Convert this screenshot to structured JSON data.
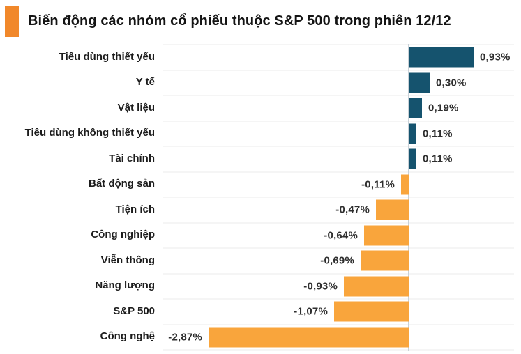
{
  "header": {
    "title": "Biến động các nhóm cổ phiếu thuộc S&P 500 trong phiên 12/12",
    "accent_color": "#f1882b"
  },
  "chart_data": {
    "type": "bar",
    "orientation": "horizontal",
    "title": "Biến động các nhóm cổ phiếu thuộc S&P 500 trong phiên 12/12",
    "categories": [
      "Tiêu dùng thiết yếu",
      "Y tế",
      "Vật liệu",
      "Tiêu dùng không thiết yếu",
      "Tài chính",
      "Bất động sản",
      "Tiện ích",
      "Công nghiệp",
      "Viễn thông",
      "Năng lượng",
      "S&P 500",
      "Công nghệ"
    ],
    "values": [
      0.93,
      0.3,
      0.19,
      0.11,
      0.11,
      -0.11,
      -0.47,
      -0.64,
      -0.69,
      -0.93,
      -1.07,
      -2.87
    ],
    "value_labels": [
      "0,93%",
      "0,30%",
      "0,19%",
      "0,11%",
      "0,11%",
      "-0,11%",
      "-0,47%",
      "-0,64%",
      "-0,69%",
      "-0,93%",
      "-1,07%",
      "-2,87%"
    ],
    "unit": "%",
    "xlim": [
      -3.52,
      1.51
    ],
    "grid": true,
    "legend": false,
    "colors": {
      "positive": "#15536e",
      "negative": "#f9a53c",
      "axis_line": "#c9d1d7",
      "gridline": "#f5f5f5"
    }
  }
}
